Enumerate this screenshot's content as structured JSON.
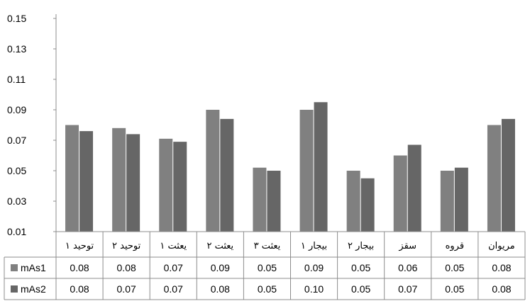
{
  "chart_data": {
    "type": "bar",
    "title": "",
    "xlabel": "",
    "ylabel": "",
    "ylim": [
      0.01,
      0.15
    ],
    "yticks": [
      "0.15",
      "0.13",
      "0.11",
      "0.09",
      "0.07",
      "0.05",
      "0.03",
      "0.01"
    ],
    "grid": false,
    "legend": "data-table-left",
    "categories": [
      "توحید ۱",
      "توحید ۲",
      "یعثت ۱",
      "یعثت ۲",
      "یعثت ۳",
      "بیجار ۱",
      "بیجار ۲",
      "سقز",
      "قروه",
      "مریوان"
    ],
    "series": [
      {
        "name": "mAs1",
        "color": "#808080",
        "values": [
          0.08,
          0.078,
          0.071,
          0.09,
          0.052,
          0.09,
          0.05,
          0.06,
          0.05,
          0.08
        ],
        "labels": [
          "0.08",
          "0.08",
          "0.07",
          "0.09",
          "0.05",
          "0.09",
          "0.05",
          "0.06",
          "0.05",
          "0.08"
        ]
      },
      {
        "name": "mAs2",
        "color": "#666666",
        "values": [
          0.076,
          0.074,
          0.069,
          0.084,
          0.05,
          0.095,
          0.045,
          0.067,
          0.052,
          0.084
        ],
        "labels": [
          "0.08",
          "0.07",
          "0.07",
          "0.08",
          "0.05",
          "0.10",
          "0.05",
          "0.07",
          "0.05",
          "0.08"
        ]
      }
    ]
  }
}
